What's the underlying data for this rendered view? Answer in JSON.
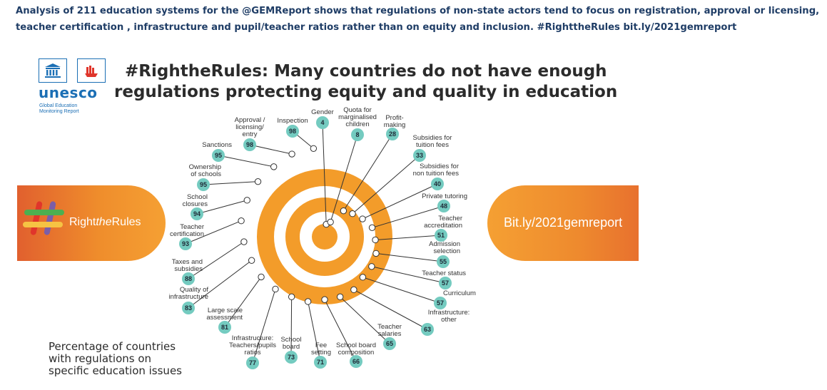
{
  "tweet_text": "Analysis of 211 education systems for the @GEMReport shows that regulations of non-state actors tend to focus on registration, approval or licensing, teacher certification , infrastructure and pupil/teacher ratios  rather than on equity and inclusion. #RighttheRules bit.ly/2021gemreport",
  "logo": {
    "wordmark": "unesco",
    "subtitle_line1": "Global Education",
    "subtitle_line2": "Monitoring Report"
  },
  "headline": {
    "line1": "#RightheRules: Many countries do not have enough",
    "line2": "regulations protecting equity and quality in education"
  },
  "banners": {
    "left_pre": "Right",
    "left_italic": "the",
    "left_post": "Rules",
    "right": "Bit.ly/2021gemreport"
  },
  "legend_lines": [
    "Percentage of countries",
    "with regulations on",
    "specific education issues"
  ],
  "colors": {
    "orange": "#f39c2a",
    "teal": "#74cbc0",
    "navy": "#1f3d66",
    "unesco_blue": "#1b6fb5",
    "banner_red": "#e1602e"
  },
  "chart_data": {
    "type": "radial",
    "unit": "percent",
    "series": [
      {
        "label": "Gender",
        "value": 4
      },
      {
        "label": "Quota for marginalised children",
        "value": 8
      },
      {
        "label": "Profit-making",
        "value": 28
      },
      {
        "label": "Subsidies for tuition fees",
        "value": 33
      },
      {
        "label": "Subsidies for non tuition fees",
        "value": 40
      },
      {
        "label": "Private tutoring",
        "value": 48
      },
      {
        "label": "Teacher accreditation",
        "value": 51
      },
      {
        "label": "Admission selection",
        "value": 55
      },
      {
        "label": "Teacher status",
        "value": 57
      },
      {
        "label": "Curriculum",
        "value": 57
      },
      {
        "label": "Infrastructure: other",
        "value": 63
      },
      {
        "label": "Teacher salaries",
        "value": 65
      },
      {
        "label": "School board composition",
        "value": 66
      },
      {
        "label": "Fee setting",
        "value": 71
      },
      {
        "label": "School board",
        "value": 73
      },
      {
        "label": "Infrastructure: Teachers/pupils ratios",
        "value": 77
      },
      {
        "label": "Large scale assessment",
        "value": 81
      },
      {
        "label": "Quality of infrastructure",
        "value": 83
      },
      {
        "label": "Taxes and subsidies",
        "value": 88
      },
      {
        "label": "Teacher certification",
        "value": 93
      },
      {
        "label": "School closures",
        "value": 94
      },
      {
        "label": "Ownership of schools",
        "value": 95
      },
      {
        "label": "Sanctions",
        "value": 95
      },
      {
        "label": "Approval / licensing/ entry",
        "value": 98
      },
      {
        "label": "Inspection",
        "value": 98
      }
    ]
  }
}
